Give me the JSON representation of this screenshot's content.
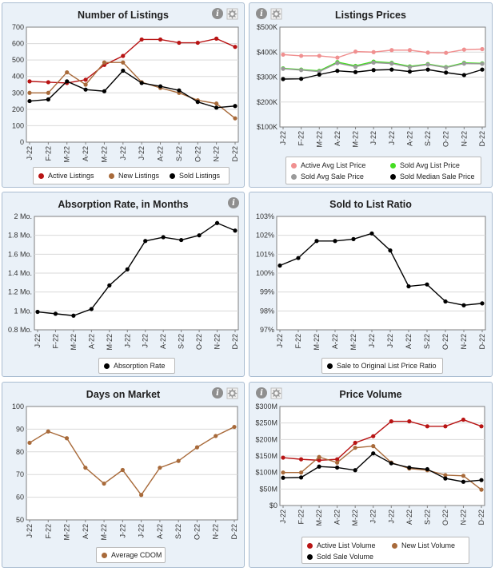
{
  "months": [
    "J-22",
    "F-22",
    "M-22",
    "A-22",
    "M-22",
    "J-22",
    "J-22",
    "A-22",
    "S-22",
    "O-22",
    "N-22",
    "D-22"
  ],
  "icons": {
    "help": "help-icon",
    "settings": "settings-icon"
  },
  "help_glyph": "i",
  "panels": [
    {
      "id": "listings",
      "title": "Number of Listings",
      "chart_data": {
        "type": "line",
        "categories": [
          "J-22",
          "F-22",
          "M-22",
          "A-22",
          "M-22",
          "J-22",
          "J-22",
          "A-22",
          "S-22",
          "O-22",
          "N-22",
          "D-22"
        ],
        "ylim": [
          0,
          700
        ],
        "yticks": [
          0,
          100,
          200,
          300,
          400,
          500,
          600,
          700
        ],
        "ytick_labels": [
          "0",
          "100",
          "200",
          "300",
          "400",
          "500",
          "600",
          "700"
        ],
        "series": [
          {
            "name": "Active Listings",
            "color": "#b81414",
            "values": [
              370,
              365,
              360,
              380,
              470,
              525,
              625,
              625,
              605,
              605,
              630,
              580
            ]
          },
          {
            "name": "New Listings",
            "color": "#a86a3a",
            "values": [
              300,
              300,
              425,
              350,
              485,
              485,
              365,
              330,
              300,
              255,
              235,
              145
            ]
          },
          {
            "name": "Sold Listings",
            "color": "#000000",
            "values": [
              250,
              260,
              370,
              320,
              310,
              435,
              360,
              340,
              315,
              245,
              210,
              220
            ]
          }
        ]
      }
    },
    {
      "id": "prices",
      "title": "Listings Prices",
      "chart_data": {
        "type": "line",
        "categories": [
          "J-22",
          "F-22",
          "M-22",
          "A-22",
          "M-22",
          "J-22",
          "J-22",
          "A-22",
          "S-22",
          "O-22",
          "N-22",
          "D-22"
        ],
        "ylim": [
          100000,
          500000
        ],
        "yticks": [
          100000,
          200000,
          300000,
          400000,
          500000
        ],
        "ytick_labels": [
          "$100K",
          "$200K",
          "$300K",
          "$400K",
          "$500K"
        ],
        "series": [
          {
            "name": "Active Avg List Price",
            "color": "#f09090",
            "values": [
              390000,
              385000,
              385000,
              378000,
              402000,
              400000,
              408000,
              408000,
              398000,
              397000,
              410000,
              412000
            ]
          },
          {
            "name": "Sold Avg List Price",
            "color": "#44dd22",
            "values": [
              335000,
              330000,
              325000,
              360000,
              345000,
              362000,
              357000,
              343000,
              352000,
              340000,
              357000,
              355000
            ]
          },
          {
            "name": "Sold Avg Sale Price",
            "color": "#9a9a9a",
            "values": [
              333000,
              328000,
              322000,
              356000,
              341000,
              358000,
              354000,
              340000,
              350000,
              338000,
              354000,
              353000
            ]
          },
          {
            "name": "Sold Median Sale Price",
            "color": "#000000",
            "values": [
              292000,
              293000,
              310000,
              325000,
              320000,
              328000,
              330000,
              322000,
              330000,
              318000,
              308000,
              330000
            ]
          }
        ]
      }
    },
    {
      "id": "absorption",
      "title": "Absorption Rate, in Months",
      "chart_data": {
        "type": "line",
        "categories": [
          "J-22",
          "F-22",
          "M-22",
          "A-22",
          "M-22",
          "J-22",
          "J-22",
          "A-22",
          "S-22",
          "O-22",
          "N-22",
          "D-22"
        ],
        "ylim": [
          0.8,
          2.0
        ],
        "yticks": [
          0.8,
          1.0,
          1.2,
          1.4,
          1.6,
          1.8,
          2.0
        ],
        "ytick_labels": [
          "0.8 Mo.",
          "1 Mo.",
          "1.2 Mo.",
          "1.4 Mo.",
          "1.6 Mo.",
          "1.8 Mo.",
          "2 Mo."
        ],
        "series": [
          {
            "name": "Absorption Rate",
            "color": "#000000",
            "values": [
              0.99,
              0.97,
              0.95,
              1.02,
              1.27,
              1.44,
              1.74,
              1.78,
              1.75,
              1.8,
              1.93,
              1.85
            ]
          }
        ]
      }
    },
    {
      "id": "soldlist",
      "title": "Sold to List Ratio",
      "chart_data": {
        "type": "line",
        "categories": [
          "J-22",
          "F-22",
          "M-22",
          "A-22",
          "M-22",
          "J-22",
          "J-22",
          "A-22",
          "S-22",
          "O-22",
          "N-22",
          "D-22"
        ],
        "ylim": [
          97,
          103
        ],
        "yticks": [
          97,
          98,
          99,
          100,
          101,
          102,
          103
        ],
        "ytick_labels": [
          "97%",
          "98%",
          "99%",
          "100%",
          "101%",
          "102%",
          "103%"
        ],
        "series": [
          {
            "name": "Sale to Original List Price Ratio",
            "color": "#000000",
            "values": [
              100.4,
              100.8,
              101.7,
              101.7,
              101.8,
              102.1,
              101.2,
              99.3,
              99.4,
              98.5,
              98.3,
              98.4
            ]
          }
        ]
      }
    },
    {
      "id": "dom",
      "title": "Days on Market",
      "chart_data": {
        "type": "line",
        "categories": [
          "J-22",
          "F-22",
          "M-22",
          "A-22",
          "M-22",
          "J-22",
          "J-22",
          "A-22",
          "S-22",
          "O-22",
          "N-22",
          "D-22"
        ],
        "ylim": [
          50,
          100
        ],
        "yticks": [
          50,
          60,
          70,
          80,
          90,
          100
        ],
        "ytick_labels": [
          "50",
          "60",
          "70",
          "80",
          "90",
          "100"
        ],
        "series": [
          {
            "name": "Average CDOM",
            "color": "#a86a3a",
            "values": [
              84,
              89,
              86,
              73,
              66,
              72,
              61,
              73,
              76,
              82,
              87,
              91
            ]
          }
        ]
      }
    },
    {
      "id": "volume",
      "title": "Price Volume",
      "chart_data": {
        "type": "line",
        "categories": [
          "J-22",
          "F-22",
          "M-22",
          "A-22",
          "M-22",
          "J-22",
          "J-22",
          "A-22",
          "S-22",
          "O-22",
          "N-22",
          "D-22"
        ],
        "ylim": [
          0,
          300000000
        ],
        "yticks": [
          0,
          50000000,
          100000000,
          150000000,
          200000000,
          250000000,
          300000000
        ],
        "ytick_labels": [
          "$0",
          "$50M",
          "$100M",
          "$150M",
          "$200M",
          "$250M",
          "$300M"
        ],
        "series": [
          {
            "name": "Active List Volume",
            "color": "#b81414",
            "values": [
              145000000,
              140000000,
              137000000,
              140000000,
              190000000,
              210000000,
              255000000,
              255000000,
              240000000,
              240000000,
              260000000,
              240000000
            ]
          },
          {
            "name": "New List Volume",
            "color": "#a86a3a",
            "values": [
              100000000,
              100000000,
              147000000,
              130000000,
              175000000,
              180000000,
              130000000,
              112000000,
              107000000,
              92000000,
              90000000,
              48000000
            ]
          },
          {
            "name": "Sold Sale Volume",
            "color": "#000000",
            "values": [
              84000000,
              85000000,
              118000000,
              115000000,
              107000000,
              158000000,
              128000000,
              115000000,
              110000000,
              82000000,
              72000000,
              77000000
            ]
          }
        ]
      }
    }
  ]
}
